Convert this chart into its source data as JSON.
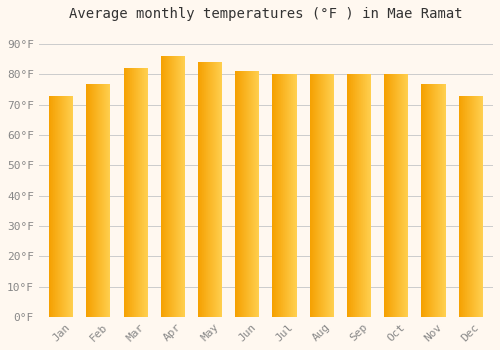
{
  "title": "Average monthly temperatures (°F ) in Mae Ramat",
  "months": [
    "Jan",
    "Feb",
    "Mar",
    "Apr",
    "May",
    "Jun",
    "Jul",
    "Aug",
    "Sep",
    "Oct",
    "Nov",
    "Dec"
  ],
  "values": [
    73,
    77,
    82,
    86,
    84,
    81,
    80,
    80,
    80,
    80,
    77,
    73
  ],
  "bar_color_left": "#F5A000",
  "bar_color_right": "#FFD050",
  "background_color": "#FFF8F0",
  "grid_color": "#CCCCCC",
  "ylim": [
    0,
    95
  ],
  "yticks": [
    0,
    10,
    20,
    30,
    40,
    50,
    60,
    70,
    80,
    90
  ],
  "ytick_labels": [
    "0°F",
    "10°F",
    "20°F",
    "30°F",
    "40°F",
    "50°F",
    "60°F",
    "70°F",
    "80°F",
    "90°F"
  ],
  "title_fontsize": 10,
  "tick_fontsize": 8,
  "font_family": "monospace",
  "fig_width": 5.0,
  "fig_height": 3.5,
  "dpi": 100
}
